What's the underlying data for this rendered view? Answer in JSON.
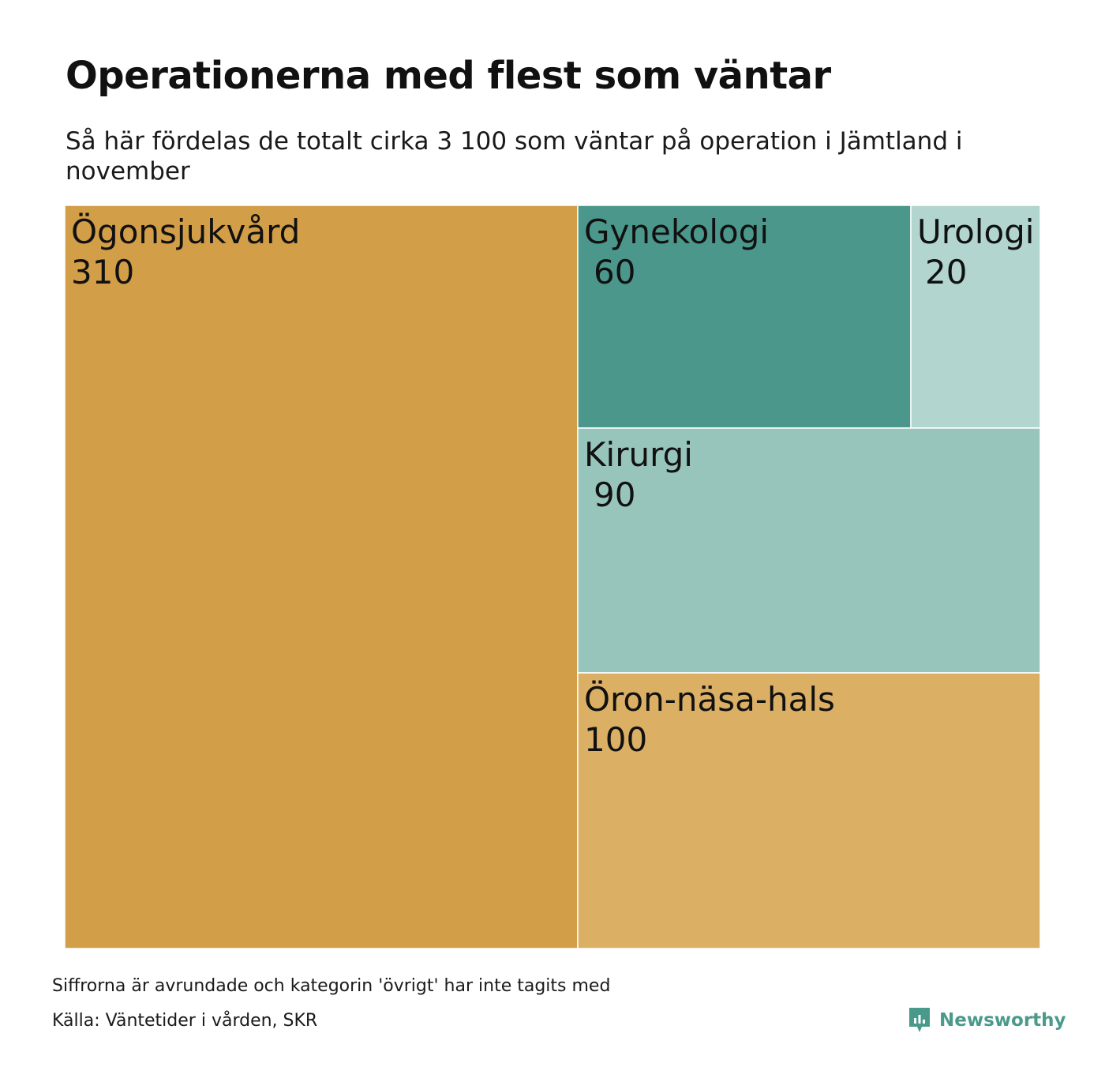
{
  "title": "Operationerna med flest som väntar",
  "subtitle": "Så här fördelas de totalt cirka 3 100 som väntar på operation i Jämtland i november",
  "footnote": "Siffrorna är avrundade och kategorin 'övrigt' har inte tagits med",
  "source": "Källa: Väntetider i vården, SKR",
  "brand": {
    "name": "Newsworthy",
    "icon": "newsworthy-logo-icon",
    "color": "#4a9a8c"
  },
  "chart_data": {
    "type": "treemap",
    "title": "Operationerna med flest som väntar",
    "subtitle": "Så här fördelas de totalt cirka 3 100 som väntar på operation i Jämtland i november",
    "categories": [
      "Ögonsjukvård",
      "Gynekologi",
      "Urologi",
      "Kirurgi",
      "Öron-näsa-hals"
    ],
    "values": [
      310,
      60,
      20,
      90,
      100
    ],
    "colors": [
      "#d29e48",
      "#4b978b",
      "#b2d6cf",
      "#98c5bb",
      "#dbaf64"
    ]
  }
}
